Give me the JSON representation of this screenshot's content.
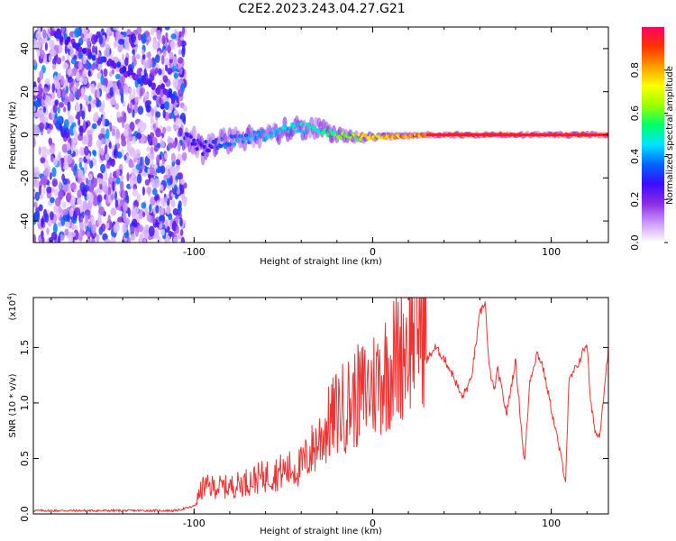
{
  "title": "C2E2.2023.243.04.27.G21",
  "chart_data": [
    {
      "type": "heatmap",
      "xlabel": "Height of straight line (km)",
      "ylabel": "Frequency (Hz)",
      "xlim": [
        -190,
        132
      ],
      "ylim": [
        -50,
        50
      ],
      "x_ticks": [
        -100,
        0,
        100
      ],
      "x_tick_labels": [
        "-100",
        "0",
        "100"
      ],
      "y_ticks": [
        -40,
        -20,
        0,
        20,
        40
      ],
      "y_tick_labels": [
        "-40",
        "-20",
        "0",
        "20",
        "40"
      ],
      "colorbar": {
        "label": "Normalized spectral amplitude",
        "range": [
          0,
          1
        ],
        "ticks": [
          0.0,
          0.2,
          0.4,
          0.6,
          0.8
        ],
        "tick_labels": [
          "0.0",
          "0.2",
          "0.4",
          "0.6",
          "0.8"
        ],
        "colormap": [
          "#ffffff",
          "#cc99ff",
          "#8a2be2",
          "#3b0cff",
          "#0066ff",
          "#00e5ff",
          "#00ff66",
          "#99ff00",
          "#ffff00",
          "#ff9900",
          "#ff3300",
          "#ff0066"
        ]
      },
      "noise_region_x": [
        -190,
        -105
      ],
      "signal_trace": [
        {
          "x": -105,
          "y": 0,
          "amp": 0.3
        },
        {
          "x": -95,
          "y": -6,
          "amp": 0.3
        },
        {
          "x": -80,
          "y": -3,
          "amp": 0.4
        },
        {
          "x": -60,
          "y": 0,
          "amp": 0.45
        },
        {
          "x": -45,
          "y": 3,
          "amp": 0.5
        },
        {
          "x": -30,
          "y": 3,
          "amp": 0.55
        },
        {
          "x": -20,
          "y": 0,
          "amp": 0.6
        },
        {
          "x": -10,
          "y": -1,
          "amp": 0.7
        },
        {
          "x": 0,
          "y": -1,
          "amp": 0.8
        },
        {
          "x": 10,
          "y": -1,
          "amp": 0.85
        },
        {
          "x": 30,
          "y": 0,
          "amp": 0.9
        },
        {
          "x": 80,
          "y": 0,
          "amp": 0.9
        },
        {
          "x": 132,
          "y": 0,
          "amp": 0.9
        }
      ],
      "diagonal_feature": [
        {
          "x": -180,
          "y": 48
        },
        {
          "x": -160,
          "y": 38
        },
        {
          "x": -140,
          "y": 30
        },
        {
          "x": -125,
          "y": 24
        },
        {
          "x": -110,
          "y": 18
        }
      ]
    },
    {
      "type": "line",
      "xlabel": "Height of straight line (km)",
      "ylabel": "SNR (10 * v/v)",
      "y_scale_label": "(x10",
      "y_scale_exponent": "4",
      "xlim": [
        -190,
        132
      ],
      "ylim": [
        0,
        1.95
      ],
      "x_ticks": [
        -100,
        0,
        100
      ],
      "x_tick_labels": [
        "-100",
        "0",
        "100"
      ],
      "y_ticks": [
        0.0,
        0.5,
        1.0,
        1.5
      ],
      "y_tick_labels": [
        "0.0",
        "0.5",
        "1.0",
        "1.5"
      ],
      "color": "#ee3333",
      "series": [
        {
          "x": [
            -190,
            -150,
            -110,
            -100,
            -95,
            -80,
            -60,
            -40,
            -30,
            -20,
            -10,
            0,
            10,
            20,
            26,
            30,
            35,
            40,
            45,
            50,
            55,
            58,
            60,
            63,
            65,
            68,
            70,
            75,
            80,
            85,
            88,
            92,
            95,
            100,
            105,
            108,
            110,
            115,
            120,
            122,
            125,
            127,
            132
          ],
          "values": [
            0.02,
            0.02,
            0.02,
            0.06,
            0.2,
            0.2,
            0.28,
            0.35,
            0.55,
            0.75,
            0.85,
            0.95,
            1.1,
            1.3,
            1.45,
            1.38,
            1.5,
            1.4,
            1.25,
            1.05,
            1.2,
            1.55,
            1.8,
            1.92,
            1.35,
            1.1,
            1.3,
            0.9,
            1.38,
            0.45,
            1.2,
            1.45,
            1.35,
            0.95,
            0.55,
            0.3,
            1.2,
            1.35,
            1.55,
            1.0,
            0.72,
            0.7,
            1.5
          ]
        }
      ]
    }
  ]
}
